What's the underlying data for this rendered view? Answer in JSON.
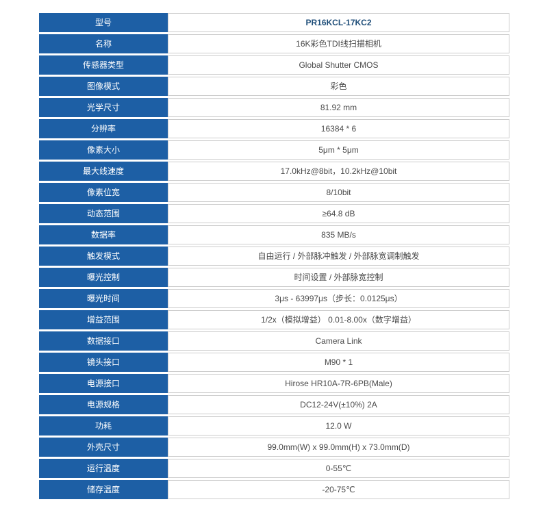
{
  "colors": {
    "label_bg": "#1d5fa5",
    "label_text": "#ffffff",
    "value_text": "#4a4a4a",
    "emphasis_text": "#1f4e79",
    "cell_border": "#cccccc",
    "page_bg": "#ffffff"
  },
  "spec_table": {
    "rows": [
      {
        "label": "型号",
        "value": "PR16KCL-17KC2",
        "emphasis": true
      },
      {
        "label": "名称",
        "value": "16K彩色TDI线扫描相机"
      },
      {
        "label": "传感器类型",
        "value": "Global Shutter CMOS"
      },
      {
        "label": "图像模式",
        "value": "彩色"
      },
      {
        "label": "光学尺寸",
        "value": "81.92 mm"
      },
      {
        "label": "分辨率",
        "value": "16384 * 6"
      },
      {
        "label": "像素大小",
        "value": "5μm * 5μm"
      },
      {
        "label": "最大线速度",
        "value": "17.0kHz@8bit，10.2kHz@10bit"
      },
      {
        "label": "像素位宽",
        "value": "8/10bit"
      },
      {
        "label": "动态范围",
        "value": "≥64.8 dB"
      },
      {
        "label": "数据率",
        "value": "835 MB/s"
      },
      {
        "label": "触发模式",
        "value": "自由运行 / 外部脉冲触发 / 外部脉宽调制触发"
      },
      {
        "label": "曝光控制",
        "value": "时间设置 / 外部脉宽控制"
      },
      {
        "label": "曝光时间",
        "value": "3μs - 63997μs（步长：0.0125μs）"
      },
      {
        "label": "增益范围",
        "value": "1/2x（模拟增益） 0.01-8.00x（数字增益）"
      },
      {
        "label": "数据接口",
        "value": "Camera Link"
      },
      {
        "label": "镜头接口",
        "value": "M90 * 1"
      },
      {
        "label": "电源接口",
        "value": "Hirose HR10A-7R-6PB(Male)"
      },
      {
        "label": "电源规格",
        "value": "DC12-24V(±10%) 2A"
      },
      {
        "label": "功耗",
        "value": "12.0 W"
      },
      {
        "label": "外壳尺寸",
        "value": "99.0mm(W) x 99.0mm(H) x 73.0mm(D)"
      },
      {
        "label": "运行温度",
        "value": "0-55℃"
      },
      {
        "label": "储存温度",
        "value": "-20-75℃"
      }
    ]
  }
}
